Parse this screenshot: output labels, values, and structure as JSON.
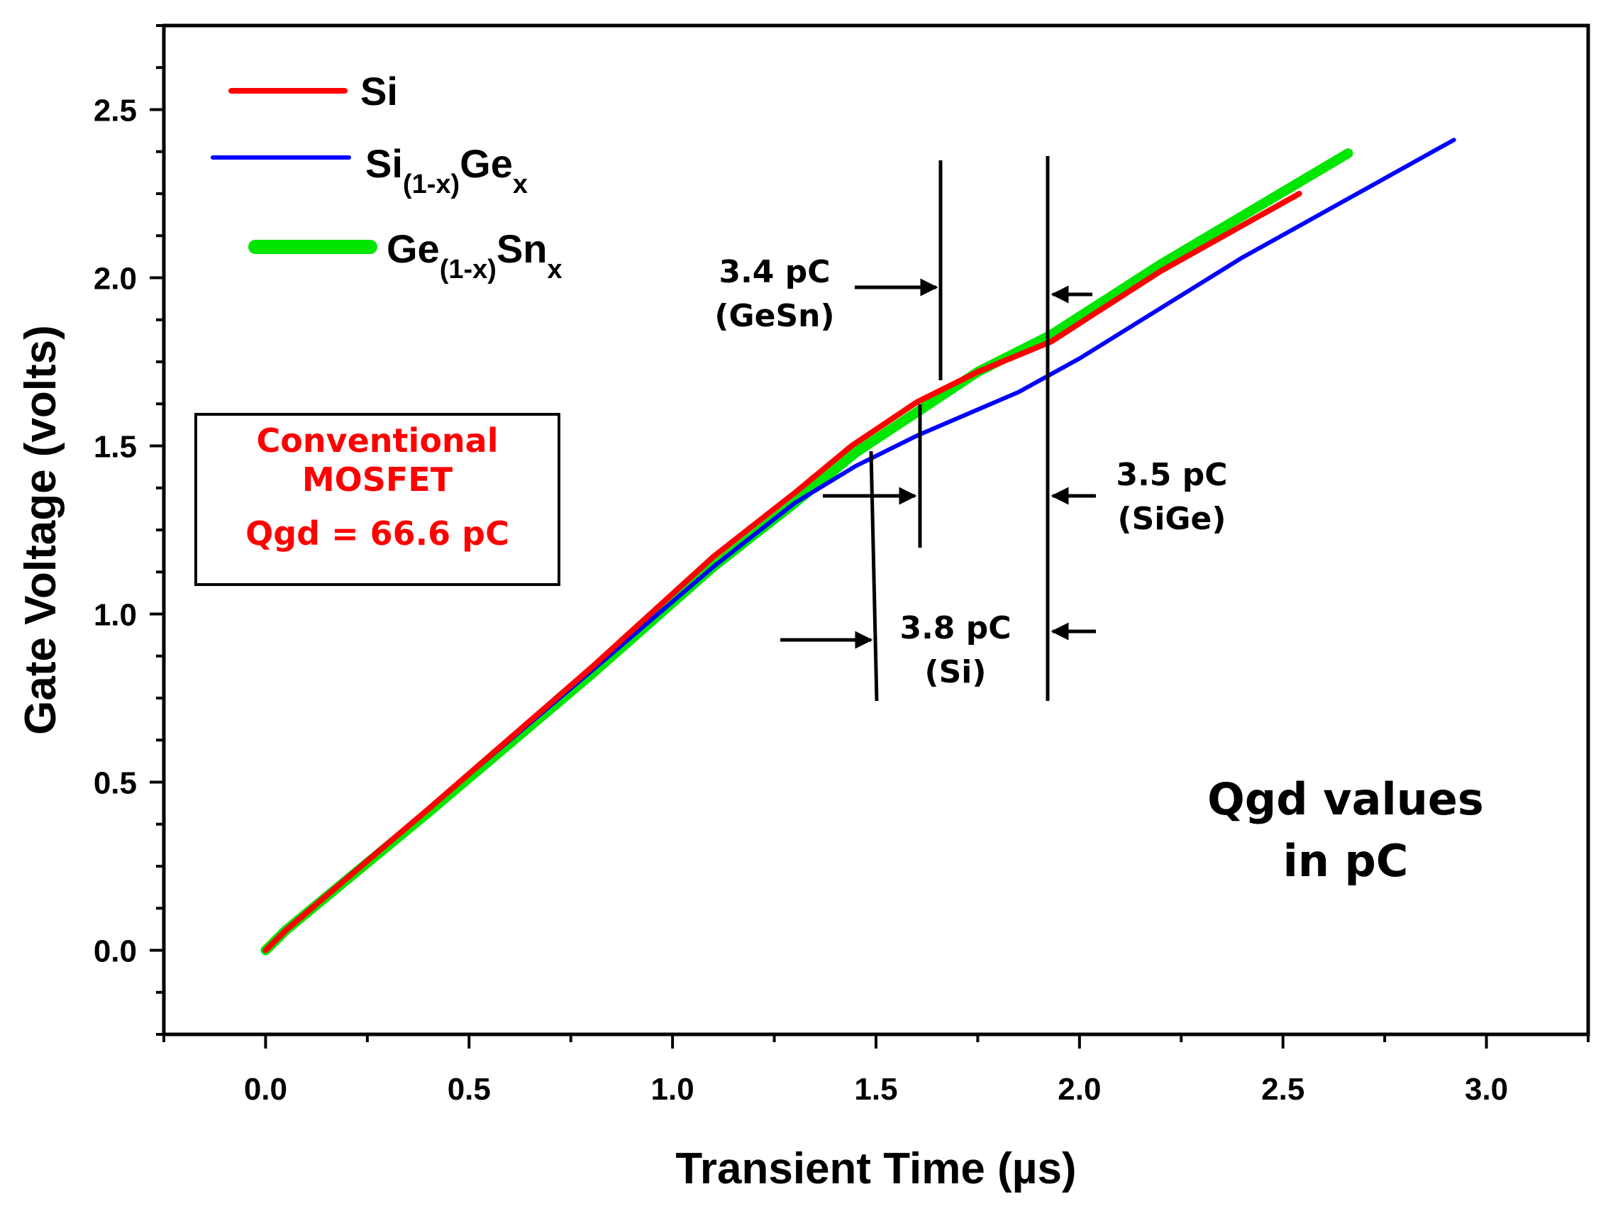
{
  "chart_data": {
    "type": "line",
    "title": "",
    "xlabel": "Transient Time (µs)",
    "ylabel": "Gate Voltage (volts)",
    "xlim": [
      -0.25,
      3.25
    ],
    "ylim": [
      -0.25,
      2.75
    ],
    "xticks": [
      0.0,
      0.5,
      1.0,
      1.5,
      2.0,
      2.5,
      3.0
    ],
    "yticks": [
      0.0,
      0.5,
      1.0,
      1.5,
      2.0,
      2.5
    ],
    "xtick_labels": [
      "0.0",
      "0.5",
      "1.0",
      "1.5",
      "2.0",
      "2.5",
      "3.0"
    ],
    "ytick_labels": [
      "0.0",
      "0.5",
      "1.0",
      "1.5",
      "2.0",
      "2.5"
    ],
    "grid": false,
    "legend_placement": "top-left",
    "series": [
      {
        "name": "Si",
        "color": "#ff0000",
        "x": [
          0.0,
          0.05,
          0.4,
          0.8,
          1.1,
          1.3,
          1.44,
          1.6,
          1.75,
          1.93,
          2.2,
          2.54
        ],
        "y": [
          0.0,
          0.06,
          0.42,
          0.84,
          1.17,
          1.36,
          1.5,
          1.63,
          1.72,
          1.81,
          2.02,
          2.25
        ]
      },
      {
        "name": "Si(1-x)Gex",
        "color": "#0000ff",
        "x": [
          0.0,
          0.05,
          0.4,
          0.8,
          1.1,
          1.3,
          1.45,
          1.6,
          1.85,
          2.0,
          2.4,
          2.92
        ],
        "y": [
          0.0,
          0.06,
          0.42,
          0.83,
          1.14,
          1.33,
          1.44,
          1.53,
          1.66,
          1.76,
          2.06,
          2.41
        ]
      },
      {
        "name": "Ge(1-x)Snx",
        "color": "#00e600",
        "x": [
          0.0,
          0.05,
          0.4,
          0.8,
          1.1,
          1.3,
          1.45,
          1.6,
          1.75,
          1.93,
          2.2,
          2.66
        ],
        "y": [
          0.0,
          0.06,
          0.41,
          0.82,
          1.14,
          1.33,
          1.48,
          1.6,
          1.72,
          1.83,
          2.04,
          2.37
        ]
      }
    ],
    "legend": [
      {
        "main": "Si",
        "sub1": "",
        "mid": "",
        "sub2": ""
      },
      {
        "main": "Si",
        "sub1": "(1-x)",
        "mid": "Ge",
        "sub2": "x"
      },
      {
        "main": "Ge",
        "sub1": "(1-x)",
        "mid": "Sn",
        "sub2": "x"
      }
    ],
    "annotations": {
      "box_line1": "Conventional",
      "box_line2": "MOSFET",
      "box_line3": "Qgd = 66.6 pC",
      "gesn_value": "3.4 pC",
      "gesn_label": "(GeSn)",
      "sige_value": "3.5 pC",
      "sige_label": "(SiGe)",
      "si_value": "3.8 pC",
      "si_label": "(Si)",
      "note_line1": "Qgd values",
      "note_line2": "in pC"
    }
  }
}
